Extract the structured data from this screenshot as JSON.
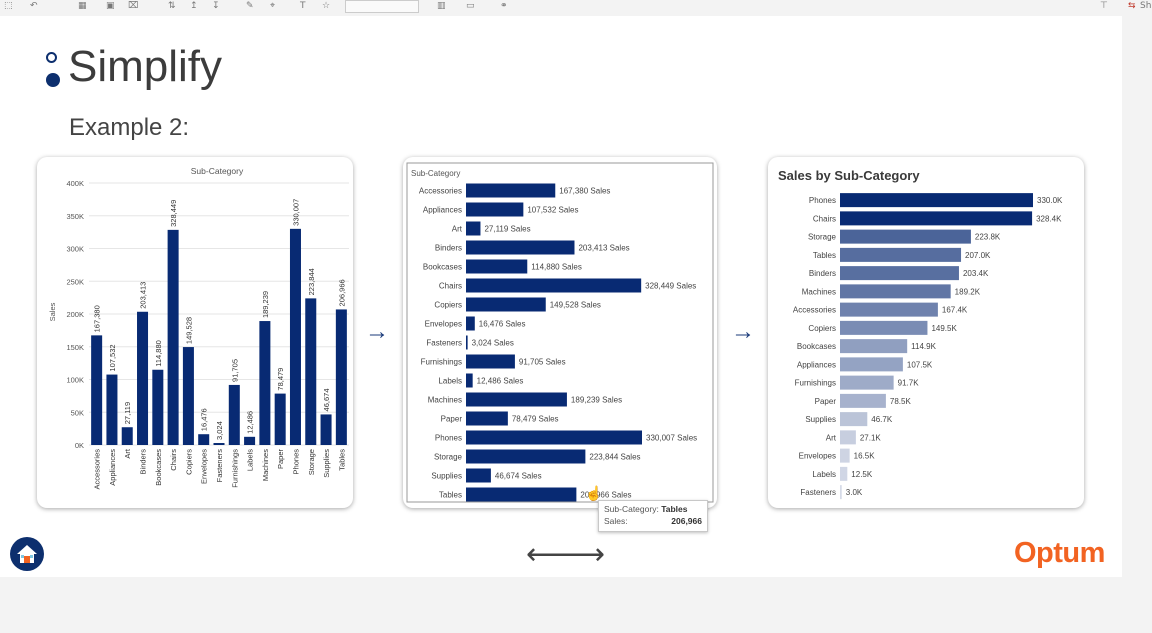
{
  "toolbar": {
    "share_label": "Sh"
  },
  "slide": {
    "title": "Simplify",
    "subtitle": "Example 2:"
  },
  "logo": {
    "text": "Optum"
  },
  "icons": [
    "home-icon",
    "arrow-right-icon",
    "arrow-left-icon"
  ],
  "colors": {
    "navy": "#0d2f6e",
    "bar": "#082a73",
    "accent": "#f26322"
  },
  "tooltip": {
    "label1": "Sub-Category:",
    "value1": "Tables",
    "label2": "Sales:",
    "value2": "206,966"
  },
  "chart_data": [
    {
      "type": "bar",
      "orientation": "vertical",
      "title": "Sub-Category",
      "ylabel": "Sales",
      "ylim": [
        0,
        400000
      ],
      "yticks": [
        "0K",
        "50K",
        "100K",
        "150K",
        "200K",
        "250K",
        "300K",
        "350K",
        "400K"
      ],
      "grid": true,
      "categories": [
        "Accessories",
        "Appliances",
        "Art",
        "Binders",
        "Bookcases",
        "Chairs",
        "Copiers",
        "Envelopes",
        "Fasteners",
        "Furnishings",
        "Labels",
        "Machines",
        "Paper",
        "Phones",
        "Storage",
        "Supplies",
        "Tables"
      ],
      "values": [
        167380,
        107532,
        27119,
        203413,
        114880,
        328449,
        149528,
        16476,
        3024,
        91705,
        12486,
        189239,
        78479,
        330007,
        223844,
        46674,
        206966
      ],
      "data_labels": [
        "167,380",
        "107,532",
        "27,119",
        "203,413",
        "114,880",
        "328,449",
        "149,528",
        "16,476",
        "3,024",
        "91,705",
        "12,486",
        "189,239",
        "78,479",
        "330,007",
        "223,844",
        "46,674",
        "206,966"
      ]
    },
    {
      "type": "bar",
      "orientation": "horizontal",
      "header": "Sub-Category",
      "categories": [
        "Accessories",
        "Appliances",
        "Art",
        "Binders",
        "Bookcases",
        "Chairs",
        "Copiers",
        "Envelopes",
        "Fasteners",
        "Furnishings",
        "Labels",
        "Machines",
        "Paper",
        "Phones",
        "Storage",
        "Supplies",
        "Tables"
      ],
      "values": [
        167380,
        107532,
        27119,
        203413,
        114880,
        328449,
        149528,
        16476,
        3024,
        91705,
        12486,
        189239,
        78479,
        330007,
        223844,
        46674,
        206966
      ],
      "data_labels": [
        "167,380 Sales",
        "107,532 Sales",
        "27,119 Sales",
        "203,413 Sales",
        "114,880 Sales",
        "328,449 Sales",
        "149,528 Sales",
        "16,476 Sales",
        "3,024 Sales",
        "91,705 Sales",
        "12,486 Sales",
        "189,239 Sales",
        "78,479 Sales",
        "330,007 Sales",
        "223,844 Sales",
        "46,674 Sales",
        "206,966 Sales"
      ]
    },
    {
      "type": "bar",
      "orientation": "horizontal",
      "title": "Sales by Sub-Category",
      "sorted": "descending",
      "color_scale": [
        "#d8dde9",
        "#082a73"
      ],
      "categories": [
        "Phones",
        "Chairs",
        "Storage",
        "Tables",
        "Binders",
        "Machines",
        "Accessories",
        "Copiers",
        "Bookcases",
        "Appliances",
        "Furnishings",
        "Paper",
        "Supplies",
        "Art",
        "Envelopes",
        "Labels",
        "Fasteners"
      ],
      "values": [
        330007,
        328449,
        223844,
        206966,
        203413,
        189239,
        167380,
        149528,
        114880,
        107532,
        91705,
        78479,
        46674,
        27119,
        16476,
        12486,
        3024
      ],
      "data_labels": [
        "330.0K",
        "328.4K",
        "223.8K",
        "207.0K",
        "203.4K",
        "189.2K",
        "167.4K",
        "149.5K",
        "114.9K",
        "107.5K",
        "91.7K",
        "78.5K",
        "46.7K",
        "27.1K",
        "16.5K",
        "12.5K",
        "3.0K"
      ]
    }
  ]
}
